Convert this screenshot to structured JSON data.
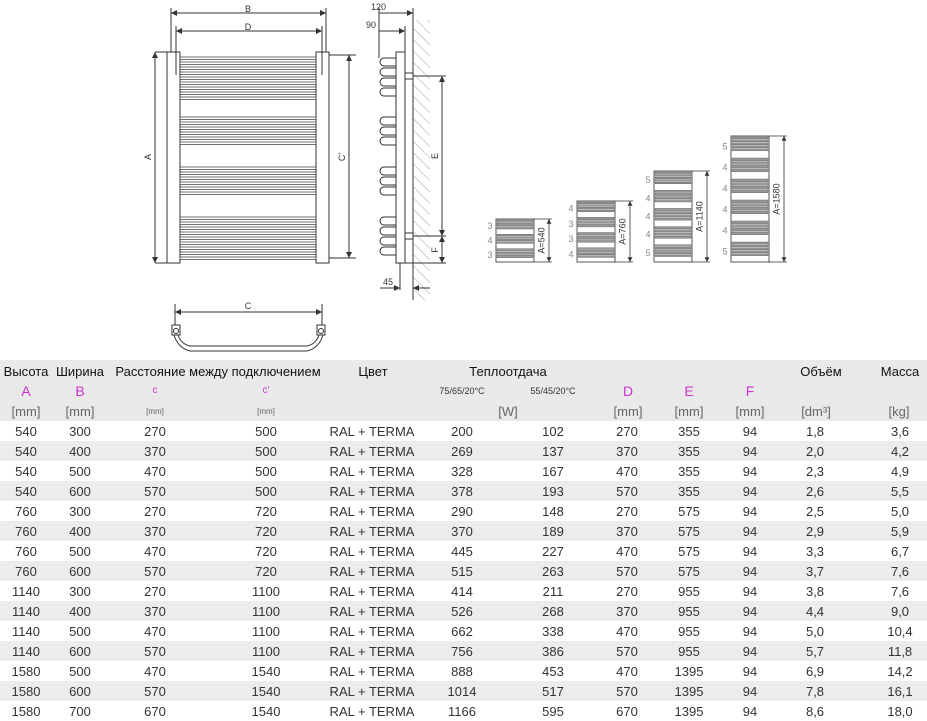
{
  "drawing": {
    "front_labels": {
      "B": "B",
      "D": "D",
      "A": "A",
      "C_prime": "C'"
    },
    "side_labels": {
      "d120": "120",
      "d90": "90",
      "E": "E",
      "F": "F",
      "d45": "45"
    },
    "top_label": "C",
    "variants": [
      {
        "label": "A=540",
        "sections": [
          "3",
          "4",
          "3"
        ]
      },
      {
        "label": "A=760",
        "sections": [
          "4",
          "3",
          "3",
          "4"
        ]
      },
      {
        "label": "A=1140",
        "sections": [
          "5",
          "4",
          "4",
          "4",
          "5"
        ]
      },
      {
        "label": "A=1580",
        "sections": [
          "5",
          "4",
          "4",
          "4",
          "4",
          "5"
        ]
      }
    ]
  },
  "table": {
    "header1": {
      "height": "Высота",
      "width": "Ширина",
      "distance": "Расстояние между подключением",
      "color": "Цвет",
      "heat": "Теплоотдача",
      "volume": "Объём",
      "mass": "Масса"
    },
    "header2": {
      "A": "A",
      "B": "B",
      "c": "c",
      "c2": "c'",
      "t1": "75/65/20°C",
      "t2": "55/45/20°C",
      "D": "D",
      "E": "E",
      "F": "F"
    },
    "header3": {
      "A": "[mm]",
      "B": "[mm]",
      "c": "[mm]",
      "c2": "[mm]",
      "W": "[W]",
      "D": "[mm]",
      "E": "[mm]",
      "F": "[mm]",
      "V": "[dm³]",
      "M": "[kg]"
    },
    "accent_color": "#cc33cc",
    "rows": [
      [
        "540",
        "300",
        "270",
        "500",
        "RAL + TERMA",
        "200",
        "102",
        "270",
        "355",
        "94",
        "1,8",
        "3,6"
      ],
      [
        "540",
        "400",
        "370",
        "500",
        "RAL + TERMA",
        "269",
        "137",
        "370",
        "355",
        "94",
        "2,0",
        "4,2"
      ],
      [
        "540",
        "500",
        "470",
        "500",
        "RAL + TERMA",
        "328",
        "167",
        "470",
        "355",
        "94",
        "2,3",
        "4,9"
      ],
      [
        "540",
        "600",
        "570",
        "500",
        "RAL + TERMA",
        "378",
        "193",
        "570",
        "355",
        "94",
        "2,6",
        "5,5"
      ],
      [
        "760",
        "300",
        "270",
        "720",
        "RAL + TERMA",
        "290",
        "148",
        "270",
        "575",
        "94",
        "2,5",
        "5,0"
      ],
      [
        "760",
        "400",
        "370",
        "720",
        "RAL + TERMA",
        "370",
        "189",
        "370",
        "575",
        "94",
        "2,9",
        "5,9"
      ],
      [
        "760",
        "500",
        "470",
        "720",
        "RAL + TERMA",
        "445",
        "227",
        "470",
        "575",
        "94",
        "3,3",
        "6,7"
      ],
      [
        "760",
        "600",
        "570",
        "720",
        "RAL + TERMA",
        "515",
        "263",
        "570",
        "575",
        "94",
        "3,7",
        "7,6"
      ],
      [
        "1140",
        "300",
        "270",
        "1100",
        "RAL + TERMA",
        "414",
        "211",
        "270",
        "955",
        "94",
        "3,8",
        "7,6"
      ],
      [
        "1140",
        "400",
        "370",
        "1100",
        "RAL + TERMA",
        "526",
        "268",
        "370",
        "955",
        "94",
        "4,4",
        "9,0"
      ],
      [
        "1140",
        "500",
        "470",
        "1100",
        "RAL + TERMA",
        "662",
        "338",
        "470",
        "955",
        "94",
        "5,0",
        "10,4"
      ],
      [
        "1140",
        "600",
        "570",
        "1100",
        "RAL + TERMA",
        "756",
        "386",
        "570",
        "955",
        "94",
        "5,7",
        "11,8"
      ],
      [
        "1580",
        "500",
        "470",
        "1540",
        "RAL + TERMA",
        "888",
        "453",
        "470",
        "1395",
        "94",
        "6,9",
        "14,2"
      ],
      [
        "1580",
        "600",
        "570",
        "1540",
        "RAL + TERMA",
        "1014",
        "517",
        "570",
        "1395",
        "94",
        "7,8",
        "16,1"
      ],
      [
        "1580",
        "700",
        "670",
        "1540",
        "RAL + TERMA",
        "1166",
        "595",
        "670",
        "1395",
        "94",
        "8,6",
        "18,0"
      ]
    ]
  }
}
